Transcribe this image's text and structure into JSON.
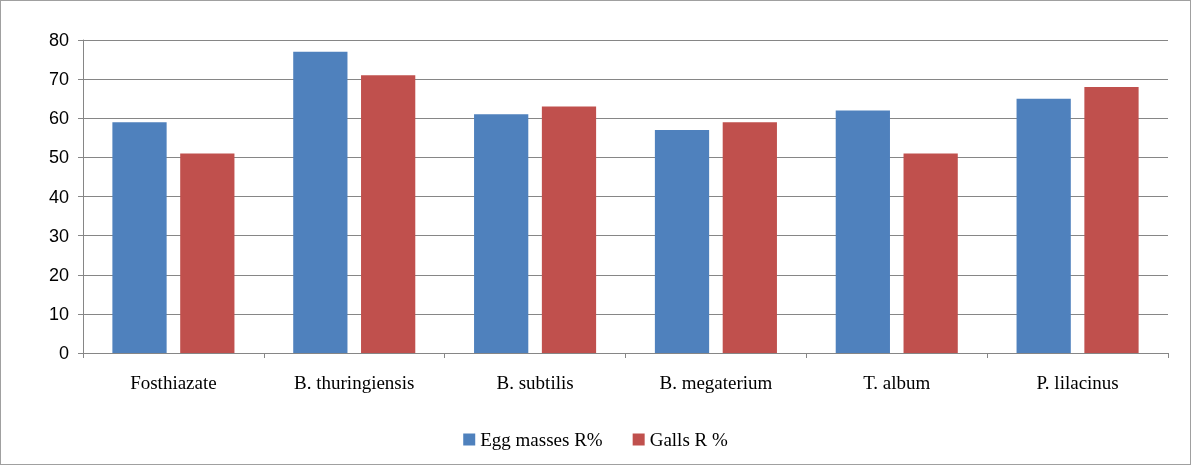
{
  "chart_data": {
    "type": "bar",
    "categories": [
      "Fosthiazate",
      "B. thuringiensis",
      "B. subtilis",
      "B. megaterium",
      "T. album",
      "P. lilacinus"
    ],
    "series": [
      {
        "name": "Egg masses R%",
        "color": "#4f81bd",
        "values": [
          59,
          77,
          61,
          57,
          62,
          65
        ]
      },
      {
        "name": "Galls R %",
        "color": "#c0504d",
        "values": [
          51,
          71,
          63,
          59,
          51,
          68
        ]
      }
    ],
    "ylim": [
      0,
      80
    ],
    "yticks": [
      0,
      10,
      20,
      30,
      40,
      50,
      60,
      70,
      80
    ],
    "grid": "y",
    "legend": "bottom"
  }
}
